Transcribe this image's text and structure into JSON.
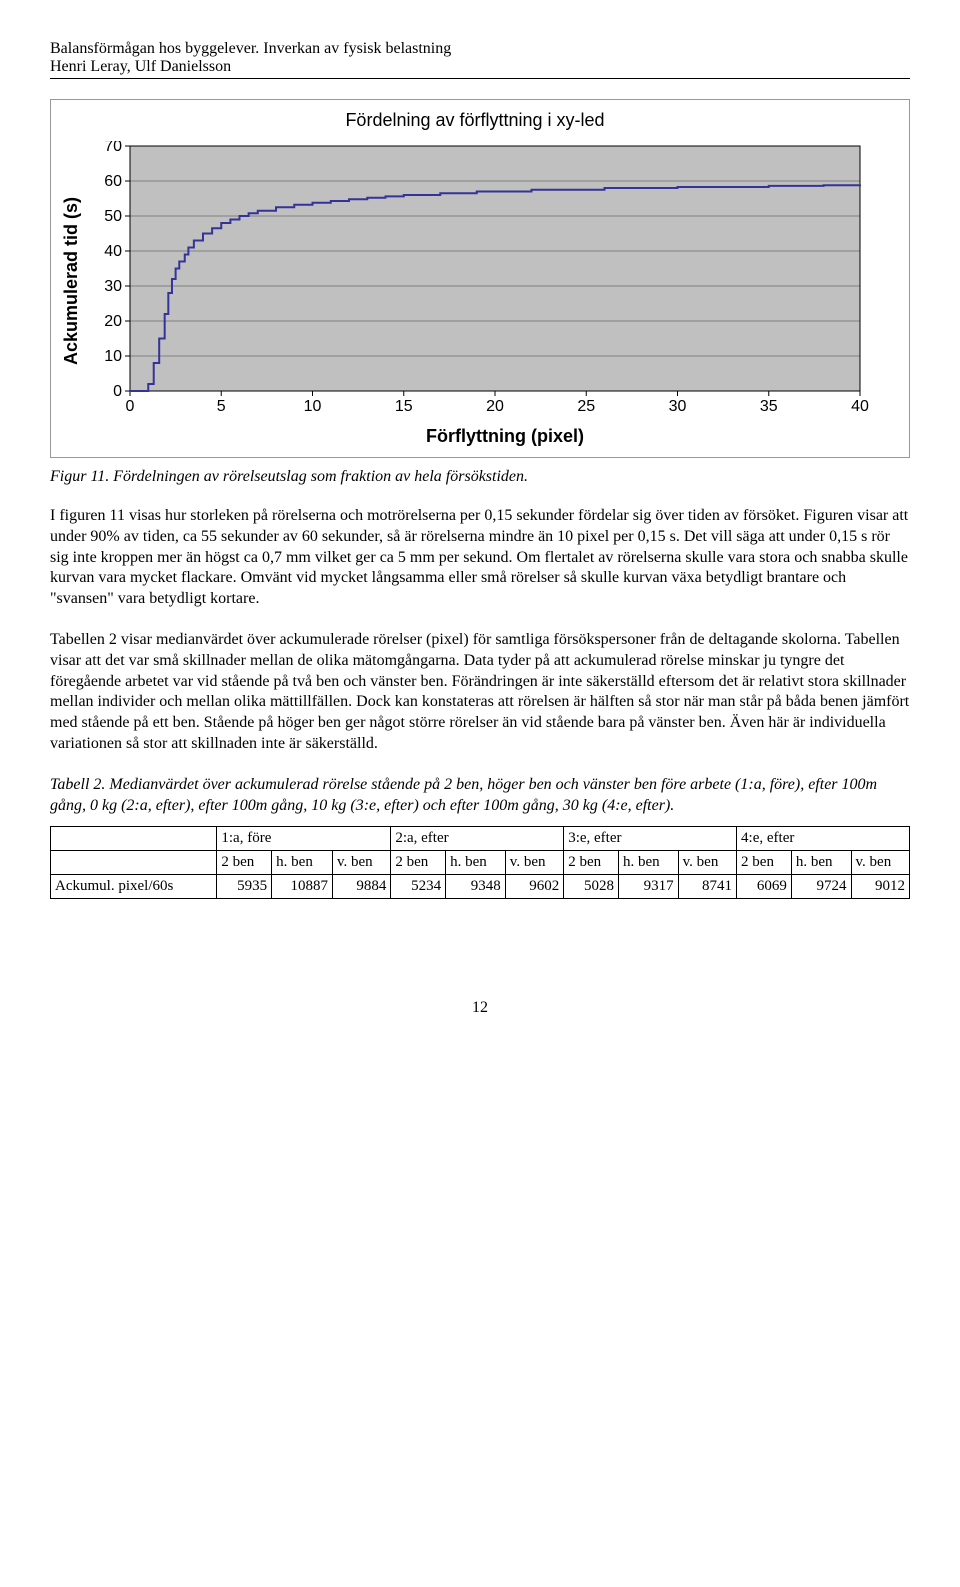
{
  "header": {
    "title": "Balansförmågan hos byggelever. Inverkan av fysisk belastning",
    "authors": "Henri Leray, Ulf Danielsson"
  },
  "chart": {
    "type": "step-line",
    "title": "Fördelning av förflyttning i xy-led",
    "ylabel": "Ackumulerad tid (s)",
    "xlabel": "Förflyttning (pixel)",
    "title_fontsize": 18,
    "label_fontsize": 18,
    "tick_fontsize": 16,
    "plot_bg": "#c0c0c0",
    "grid_color": "#808080",
    "line_color": "#333399",
    "line_width": 2,
    "xlim": [
      0,
      40
    ],
    "ylim": [
      0,
      70
    ],
    "xticks": [
      0,
      5,
      10,
      15,
      20,
      25,
      30,
      35,
      40
    ],
    "yticks": [
      0,
      10,
      20,
      30,
      40,
      50,
      60,
      70
    ],
    "data_x": [
      0,
      1,
      1.3,
      1.6,
      1.9,
      2.1,
      2.3,
      2.5,
      2.7,
      3,
      3.2,
      3.5,
      4,
      4.5,
      5,
      5.5,
      6,
      6.5,
      7,
      8,
      9,
      10,
      11,
      12,
      13,
      14,
      15,
      17,
      19,
      22,
      26,
      30,
      35,
      38,
      40
    ],
    "data_y": [
      0,
      2,
      8,
      15,
      22,
      28,
      32,
      35,
      37,
      39,
      41,
      43,
      45,
      46.5,
      48,
      49,
      50,
      50.8,
      51.5,
      52.5,
      53.2,
      53.8,
      54.3,
      54.8,
      55.2,
      55.6,
      56,
      56.5,
      57,
      57.5,
      58,
      58.3,
      58.6,
      58.8,
      59
    ]
  },
  "figure_caption": "Figur 11. Fördelningen av rörelseutslag som fraktion av hela försökstiden.",
  "paragraph1": "I figuren 11 visas hur storleken på rörelserna och motrörelserna per 0,15 sekunder fördelar sig över tiden av försöket. Figuren visar att under 90% av tiden, ca 55 sekunder av 60 sekunder, så är rörelserna mindre än 10 pixel per 0,15 s. Det vill säga att under 0,15 s rör sig inte kroppen mer än högst ca 0,7 mm vilket ger ca 5 mm per sekund. Om flertalet av rörelserna skulle vara stora och snabba skulle kurvan vara mycket flackare. Omvänt vid mycket långsamma eller små rörelser så skulle kurvan växa betydligt brantare och \"svansen\" vara betydligt kortare.",
  "paragraph2": "Tabellen 2 visar medianvärdet över ackumulerade rörelser (pixel) för samtliga försökspersoner från de deltagande skolorna. Tabellen visar att det var små skillnader mellan de olika mätomgångarna. Data tyder på att ackumulerad rörelse minskar ju tyngre det föregående arbetet var vid stående på två ben och vänster ben. Förändringen är inte säkerställd eftersom det är relativt stora skillnader mellan individer och mellan olika mättillfällen. Dock kan konstateras att rörelsen är hälften så stor när man står på båda benen jämfört med stående på ett ben. Stående på höger ben ger något större rörelser än vid stående bara på vänster ben. Även här är individuella variationen så stor att skillnaden inte är säkerställd.",
  "table_caption": "Tabell 2. Medianvärdet över ackumulerad rörelse stående på 2 ben, höger ben och vänster ben före arbete (1:a, före), efter 100m gång, 0 kg (2:a, efter), efter 100m gång, 10 kg (3:e, efter) och efter 100m gång, 30 kg (4:e, efter).",
  "table": {
    "group_headers": [
      "1:a, före",
      "2:a, efter",
      "3:e, efter",
      "4:e, efter"
    ],
    "sub_headers": [
      "2 ben",
      "h. ben",
      "v. ben",
      "2 ben",
      "h. ben",
      "v. ben",
      "2 ben",
      "h. ben",
      "v. ben",
      "2 ben",
      "h. ben",
      "v. ben"
    ],
    "row_label": "Ackumul. pixel/60s",
    "values": [
      "5935",
      "10887",
      "9884",
      "5234",
      "9348",
      "9602",
      "5028",
      "9317",
      "8741",
      "6069",
      "9724",
      "9012"
    ]
  },
  "page_number": "12"
}
